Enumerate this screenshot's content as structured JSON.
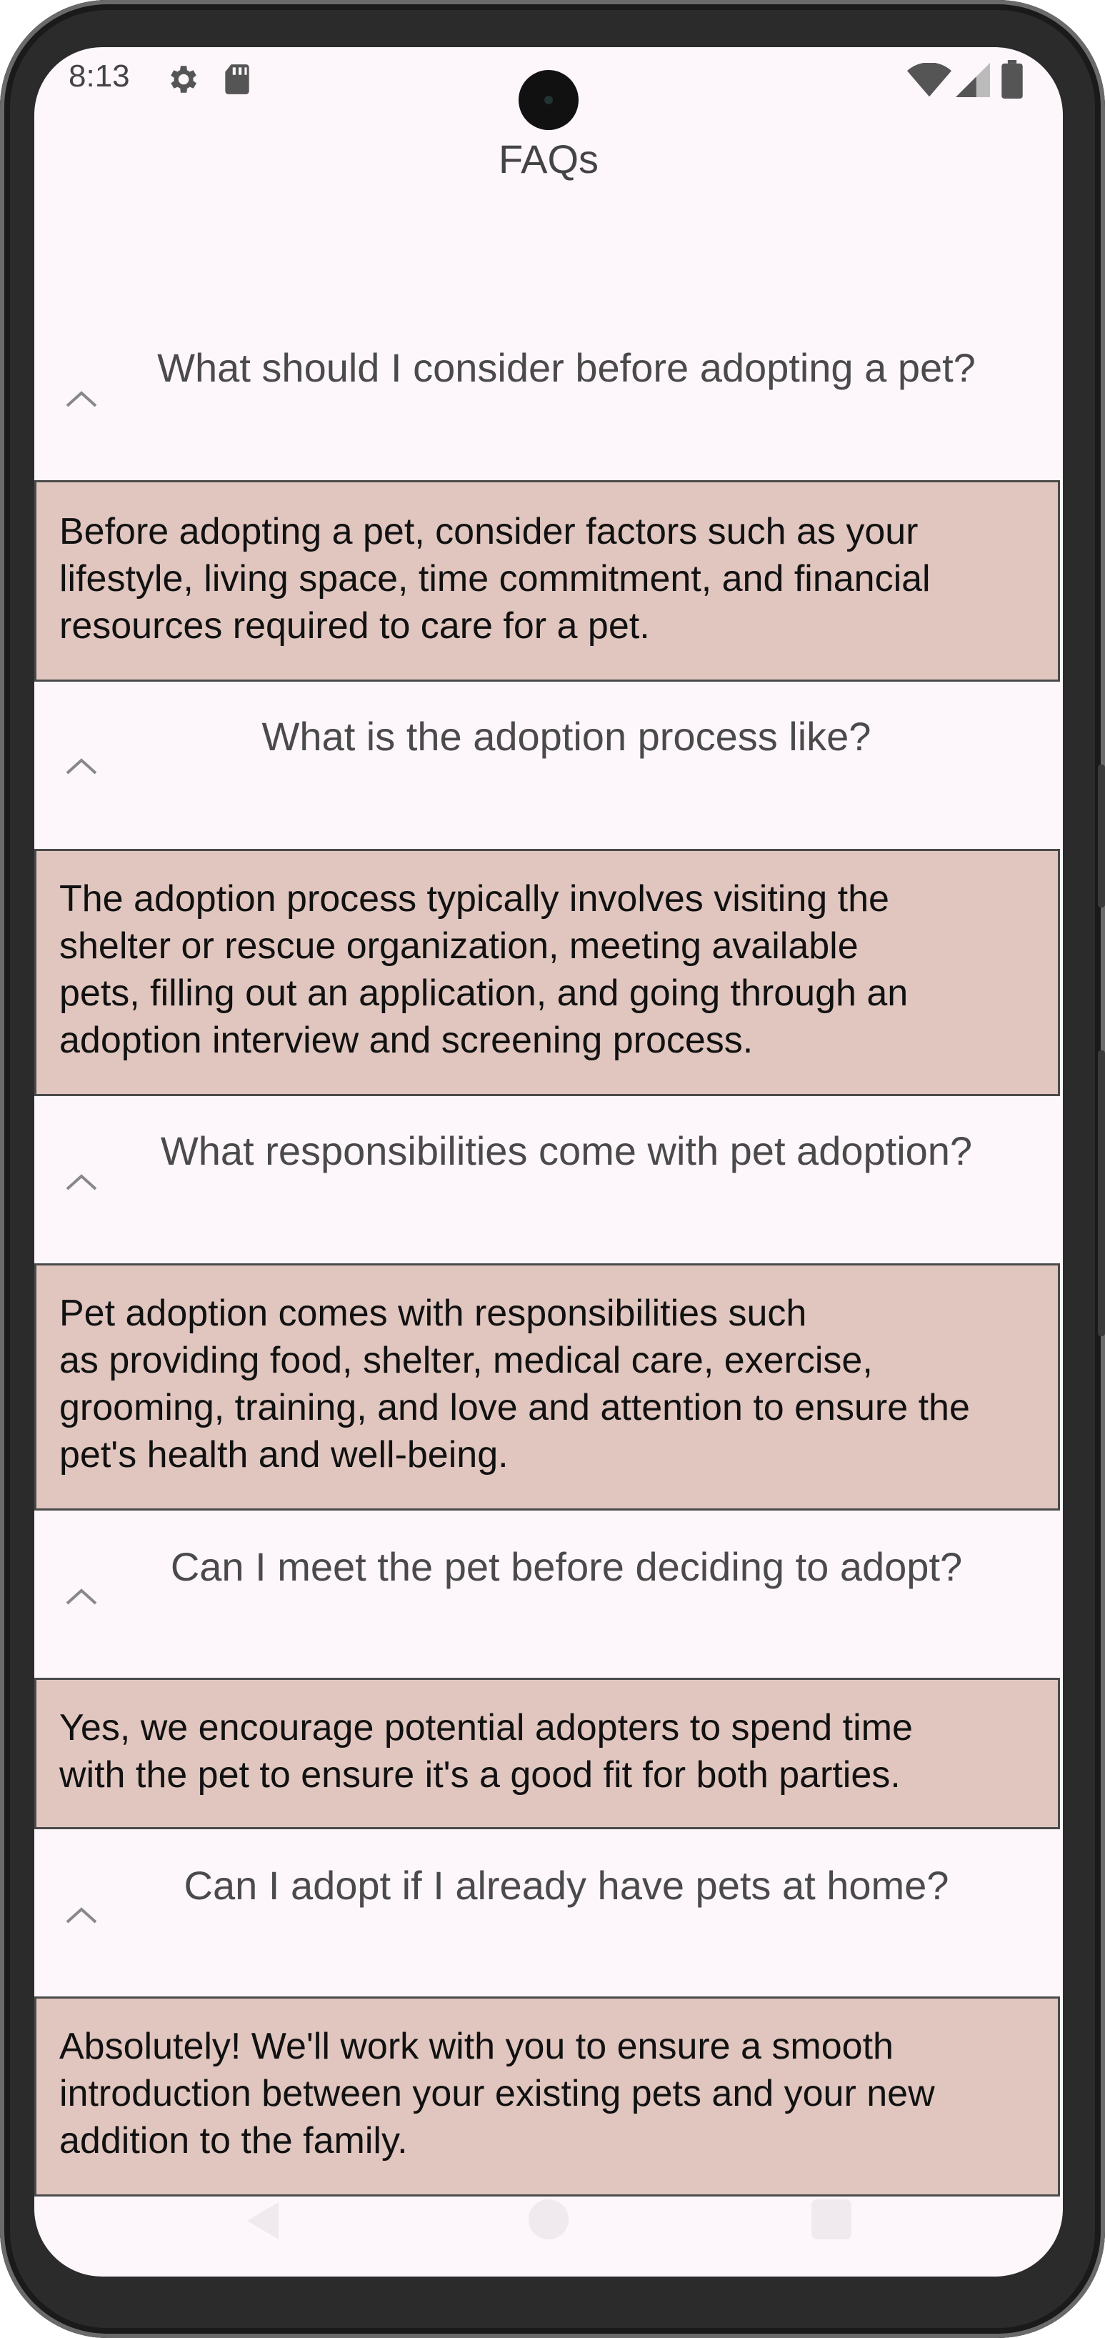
{
  "status_bar": {
    "time": "8:13",
    "left_icons": [
      "gear-icon",
      "sd-card-icon"
    ],
    "right_icons": [
      "wifi-icon",
      "signal-icon",
      "battery-icon"
    ]
  },
  "header": {
    "title": "FAQs"
  },
  "faqs": [
    {
      "question": "What should I consider before adopting a pet?",
      "answer_lines": [
        "Before adopting a pet, consider factors such as your",
        "lifestyle, living space, time commitment, and financial",
        "resources required to care for a pet."
      ]
    },
    {
      "question": "What is the adoption process like?",
      "answer_lines": [
        "The adoption process typically involves visiting the",
        "shelter or rescue organization, meeting available",
        "pets, filling out an application, and going through an",
        "adoption interview and screening process."
      ]
    },
    {
      "question": "What responsibilities come with pet adoption?",
      "answer_lines": [
        "Pet adoption comes with responsibilities such",
        "as providing food, shelter, medical care, exercise,",
        "grooming, training, and love and attention to ensure the",
        "pet's health and well-being."
      ]
    },
    {
      "question": "Can I meet the pet before deciding to adopt?",
      "answer_lines": [
        "Yes, we encourage potential adopters to spend time",
        "with the pet to ensure it's a good fit for both parties."
      ]
    },
    {
      "question": "Can I adopt if I already have pets at home?",
      "answer_lines": [
        "Absolutely! We'll work with you to ensure a smooth",
        "introduction between your existing pets and your new",
        "addition to the family."
      ]
    }
  ],
  "nav_bar": {
    "icons": [
      "back-icon",
      "home-icon",
      "recents-icon"
    ]
  },
  "colors": {
    "background": "#fdf7fb",
    "answer_background": "#e0c6bf",
    "answer_border": "#4a4a4a",
    "question_text": "#4a4a4a"
  }
}
